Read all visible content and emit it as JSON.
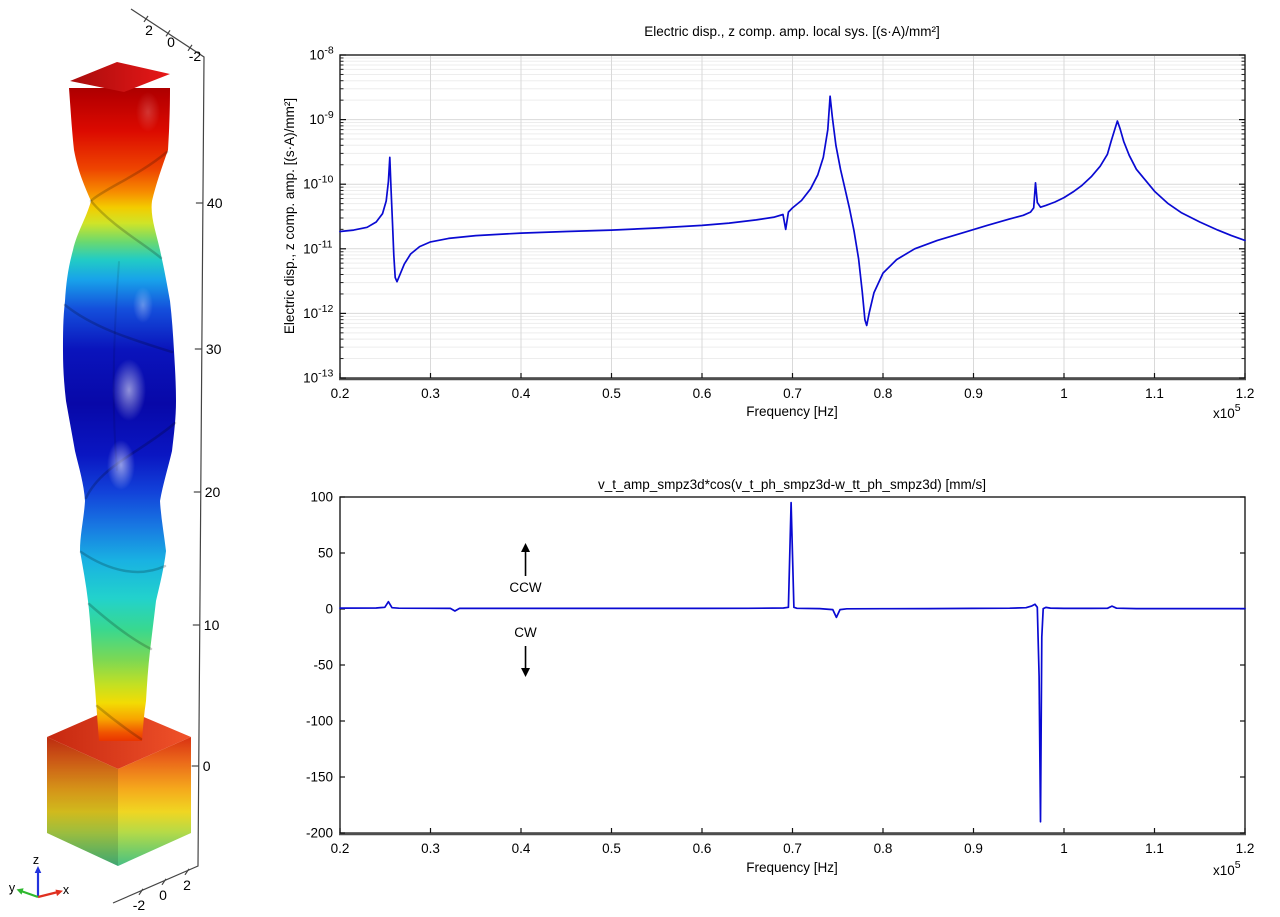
{
  "view3d": {
    "description": "3D surface of twisted piezoelectric column on cube base, rainbow colormap",
    "top_axis_labels": [
      "2",
      "0",
      "-2"
    ],
    "z_axis_labels": [
      "40",
      "30",
      "20",
      "10",
      "0"
    ],
    "bottom_axis_labels": [
      "-2",
      "0",
      "2"
    ],
    "triad_labels": {
      "x": "x",
      "y": "y",
      "z": "z"
    },
    "triad_colors": {
      "x": "#e03020",
      "y": "#2eb82e",
      "z": "#2233dd"
    },
    "colormap": "rainbow",
    "colormap_stops": [
      [
        0.0,
        "#8f0000"
      ],
      [
        0.05,
        "#b80000"
      ],
      [
        0.1,
        "#dc0a00"
      ],
      [
        0.155,
        "#ee4400"
      ],
      [
        0.19,
        "#f78e00"
      ],
      [
        0.212,
        "#f3cc00"
      ],
      [
        0.235,
        "#cfe428"
      ],
      [
        0.262,
        "#6cd96e"
      ],
      [
        0.288,
        "#22ccc4"
      ],
      [
        0.318,
        "#18a2ea"
      ],
      [
        0.36,
        "#1450dc"
      ],
      [
        0.42,
        "#0a14bc"
      ],
      [
        0.5,
        "#0808a8"
      ],
      [
        0.575,
        "#0a16c2"
      ],
      [
        0.63,
        "#1243da"
      ],
      [
        0.68,
        "#1879e2"
      ],
      [
        0.73,
        "#19b2e2"
      ],
      [
        0.785,
        "#22d2cc"
      ],
      [
        0.83,
        "#38d890"
      ],
      [
        0.875,
        "#7cd854"
      ],
      [
        0.912,
        "#c4e022"
      ],
      [
        0.938,
        "#f2dc04"
      ],
      [
        0.962,
        "#f8a400"
      ],
      [
        0.982,
        "#f05400"
      ],
      [
        1,
        "#e62400"
      ]
    ],
    "cube_side_stops": [
      [
        0,
        "#d93212"
      ],
      [
        0.18,
        "#ea661a"
      ],
      [
        0.4,
        "#f5a81c"
      ],
      [
        0.58,
        "#f0d622"
      ],
      [
        0.74,
        "#b4da48"
      ],
      [
        0.9,
        "#6fcb6c"
      ],
      [
        1,
        "#49bf85"
      ]
    ],
    "cube_top_stops": [
      [
        0,
        "#c62810"
      ],
      [
        1,
        "#f0522a"
      ]
    ],
    "cap_stops": [
      [
        0,
        "#a80c0c"
      ],
      [
        1,
        "#e81818"
      ]
    ]
  },
  "chart_data": [
    {
      "type": "line",
      "title": "Electric disp., z comp. amp. local sys. [(s·A)/mm²]",
      "xlabel": "Frequency [Hz]",
      "ylabel": "Electric disp., z comp. amp. [(s·A)/mm²]",
      "x_multiplier_base": "x10",
      "x_multiplier_exp": "5",
      "xscale": "linear",
      "yscale": "log",
      "xlim": [
        0.2,
        1.2
      ],
      "xticks": [
        0.2,
        0.3,
        0.4,
        0.5,
        0.6,
        0.7,
        0.8,
        0.9,
        1,
        1.1,
        1.2
      ],
      "xtick_labels": [
        "0.2",
        "0.3",
        "0.4",
        "0.5",
        "0.6",
        "0.7",
        "0.8",
        "0.9",
        "1",
        "1.1",
        "1.2"
      ],
      "ylim": [
        1e-13,
        1e-08
      ],
      "ytick_exponents": [
        -8,
        -9,
        -10,
        -11,
        -12,
        -13
      ],
      "grid": true,
      "line_color": "#0a0ad2",
      "points": [
        [
          0.2,
          1.85e-11
        ],
        [
          0.215,
          1.95e-11
        ],
        [
          0.23,
          2.15e-11
        ],
        [
          0.24,
          2.6e-11
        ],
        [
          0.247,
          3.5e-11
        ],
        [
          0.251,
          5.5e-11
        ],
        [
          0.2535,
          1.1e-10
        ],
        [
          0.255,
          2.6e-10
        ],
        [
          0.2565,
          8e-11
        ],
        [
          0.258,
          2.5e-11
        ],
        [
          0.2595,
          8e-12
        ],
        [
          0.261,
          3.6e-12
        ],
        [
          0.263,
          3.1e-12
        ],
        [
          0.266,
          3.9e-12
        ],
        [
          0.271,
          5.8e-12
        ],
        [
          0.278,
          8.3e-12
        ],
        [
          0.288,
          1.08e-11
        ],
        [
          0.3,
          1.28e-11
        ],
        [
          0.32,
          1.45e-11
        ],
        [
          0.35,
          1.6e-11
        ],
        [
          0.4,
          1.75e-11
        ],
        [
          0.45,
          1.85e-11
        ],
        [
          0.5,
          1.95e-11
        ],
        [
          0.55,
          2.1e-11
        ],
        [
          0.6,
          2.3e-11
        ],
        [
          0.63,
          2.5e-11
        ],
        [
          0.66,
          2.8e-11
        ],
        [
          0.68,
          3.1e-11
        ],
        [
          0.6895,
          3.4e-11
        ],
        [
          0.6925,
          2e-11
        ],
        [
          0.6955,
          3.7e-11
        ],
        [
          0.7,
          4.3e-11
        ],
        [
          0.71,
          5.6e-11
        ],
        [
          0.72,
          8.5e-11
        ],
        [
          0.728,
          1.4e-10
        ],
        [
          0.734,
          2.6e-10
        ],
        [
          0.739,
          7e-10
        ],
        [
          0.7415,
          2.3e-09
        ],
        [
          0.744,
          1.1e-09
        ],
        [
          0.748,
          4e-10
        ],
        [
          0.753,
          1.7e-10
        ],
        [
          0.758,
          8.5e-11
        ],
        [
          0.763,
          4.2e-11
        ],
        [
          0.768,
          1.9e-11
        ],
        [
          0.773,
          7e-12
        ],
        [
          0.777,
          2.2e-12
        ],
        [
          0.78,
          8e-13
        ],
        [
          0.782,
          6.5e-13
        ],
        [
          0.785,
          1.05e-12
        ],
        [
          0.79,
          2.1e-12
        ],
        [
          0.8,
          4.2e-12
        ],
        [
          0.815,
          6.8e-12
        ],
        [
          0.835,
          1e-11
        ],
        [
          0.86,
          1.35e-11
        ],
        [
          0.89,
          1.8e-11
        ],
        [
          0.915,
          2.3e-11
        ],
        [
          0.94,
          2.9e-11
        ],
        [
          0.955,
          3.3e-11
        ],
        [
          0.963,
          3.7e-11
        ],
        [
          0.9665,
          4.3e-11
        ],
        [
          0.9685,
          1.05e-10
        ],
        [
          0.9705,
          5.2e-11
        ],
        [
          0.974,
          4.4e-11
        ],
        [
          0.98,
          4.7e-11
        ],
        [
          0.99,
          5.3e-11
        ],
        [
          1.0,
          6.2e-11
        ],
        [
          1.01,
          7.6e-11
        ],
        [
          1.02,
          9.6e-11
        ],
        [
          1.03,
          1.3e-10
        ],
        [
          1.04,
          1.9e-10
        ],
        [
          1.048,
          2.9e-10
        ],
        [
          1.052,
          4.6e-10
        ],
        [
          1.056,
          7e-10
        ],
        [
          1.059,
          9.5e-10
        ],
        [
          1.062,
          7.2e-10
        ],
        [
          1.066,
          4.6e-10
        ],
        [
          1.072,
          2.8e-10
        ],
        [
          1.08,
          1.7e-10
        ],
        [
          1.09,
          1.15e-10
        ],
        [
          1.1,
          7.8e-11
        ],
        [
          1.115,
          5e-11
        ],
        [
          1.13,
          3.6e-11
        ],
        [
          1.15,
          2.6e-11
        ],
        [
          1.17,
          1.95e-11
        ],
        [
          1.185,
          1.6e-11
        ],
        [
          1.2,
          1.35e-11
        ]
      ]
    },
    {
      "type": "line",
      "title": "v_t_amp_smpz3d*cos(v_t_ph_smpz3d-w_tt_ph_smpz3d) [mm/s]",
      "xlabel": "Frequency [Hz]",
      "ylabel": "",
      "x_multiplier_base": "x10",
      "x_multiplier_exp": "5",
      "xscale": "linear",
      "yscale": "linear",
      "xlim": [
        0.2,
        1.2
      ],
      "xticks": [
        0.2,
        0.3,
        0.4,
        0.5,
        0.6,
        0.7,
        0.8,
        0.9,
        1,
        1.1,
        1.2
      ],
      "xtick_labels": [
        "0.2",
        "0.3",
        "0.4",
        "0.5",
        "0.6",
        "0.7",
        "0.8",
        "0.9",
        "1",
        "1.1",
        "1.2"
      ],
      "ylim": [
        -200,
        100
      ],
      "yticks": [
        100,
        50,
        0,
        -50,
        -100,
        -150,
        -200
      ],
      "ytick_labels": [
        "100",
        "50",
        "0",
        "-50",
        "-100",
        "-150",
        "-200"
      ],
      "grid": false,
      "line_color": "#0a0ad2",
      "annotations": [
        {
          "label": "CCW",
          "arrow": "up",
          "x": 0.405
        },
        {
          "label": "CW",
          "arrow": "down",
          "x": 0.405
        }
      ],
      "points": [
        [
          0.2,
          0.8
        ],
        [
          0.24,
          0.9
        ],
        [
          0.2495,
          1.5
        ],
        [
          0.2535,
          6.5
        ],
        [
          0.2575,
          1.2
        ],
        [
          0.265,
          0.7
        ],
        [
          0.3,
          0.6
        ],
        [
          0.322,
          0.5
        ],
        [
          0.327,
          -1.8
        ],
        [
          0.332,
          0.5
        ],
        [
          0.4,
          0.5
        ],
        [
          0.5,
          0.5
        ],
        [
          0.6,
          0.5
        ],
        [
          0.65,
          0.6
        ],
        [
          0.69,
          0.9
        ],
        [
          0.6955,
          1.5
        ],
        [
          0.6985,
          95
        ],
        [
          0.7015,
          1.5
        ],
        [
          0.705,
          0.6
        ],
        [
          0.73,
          0.4
        ],
        [
          0.7445,
          -0.5
        ],
        [
          0.7485,
          -7.5
        ],
        [
          0.7525,
          -0.5
        ],
        [
          0.76,
          0.2
        ],
        [
          0.8,
          0.3
        ],
        [
          0.85,
          0.4
        ],
        [
          0.9,
          0.5
        ],
        [
          0.94,
          0.7
        ],
        [
          0.958,
          1.2
        ],
        [
          0.9645,
          2.8
        ],
        [
          0.968,
          4.2
        ],
        [
          0.9705,
          1.5
        ],
        [
          0.9725,
          -60
        ],
        [
          0.974,
          -190
        ],
        [
          0.9755,
          -25
        ],
        [
          0.977,
          0.3
        ],
        [
          0.98,
          1.4
        ],
        [
          0.985,
          0.8
        ],
        [
          1.0,
          0.5
        ],
        [
          1.03,
          0.5
        ],
        [
          1.048,
          0.6
        ],
        [
          1.053,
          2.6
        ],
        [
          1.058,
          0.7
        ],
        [
          1.08,
          0.4
        ],
        [
          1.12,
          0.4
        ],
        [
          1.16,
          0.4
        ],
        [
          1.2,
          0.4
        ]
      ]
    }
  ]
}
